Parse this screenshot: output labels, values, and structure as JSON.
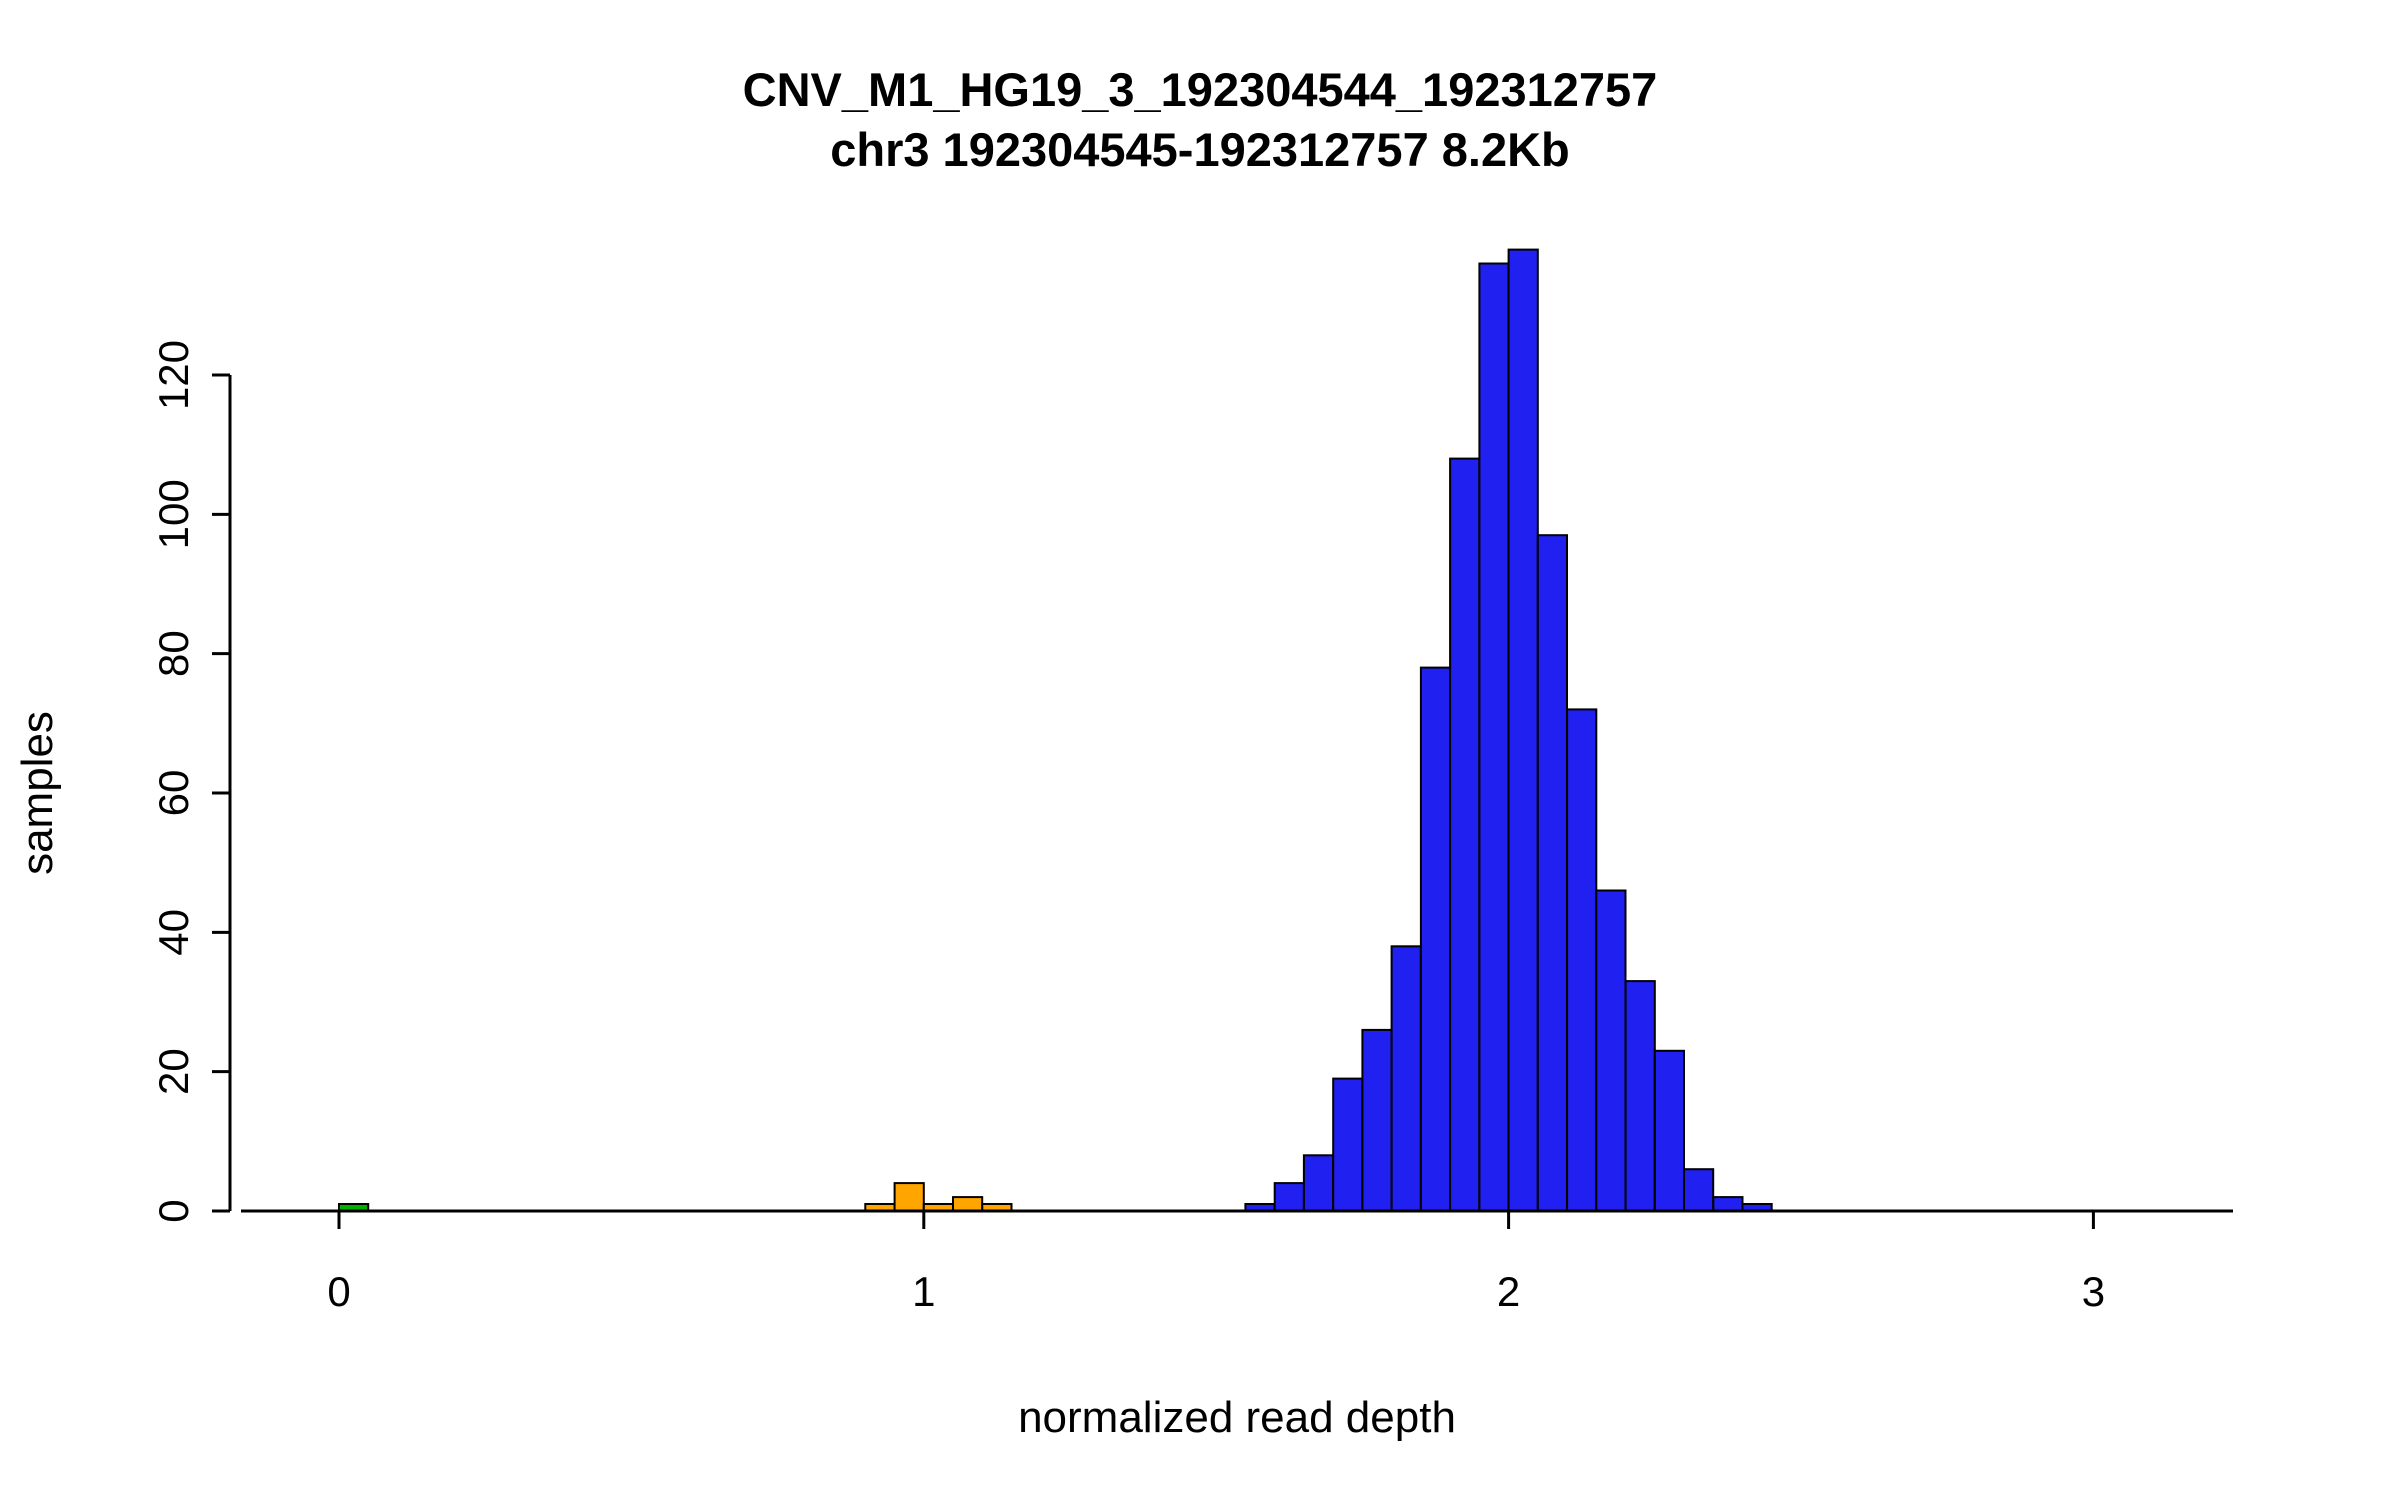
{
  "title": {
    "line1": "CNV_M1_HG19_3_192304544_192312757",
    "line2": "chr3 192304545-192312757 8.2Kb"
  },
  "axes": {
    "xlabel": "normalized read depth",
    "ylabel": "samples",
    "x_ticks": [
      0,
      1,
      2,
      3
    ],
    "y_ticks": [
      0,
      20,
      40,
      60,
      80,
      100,
      120
    ]
  },
  "colors": {
    "green": "#00B000",
    "orange": "#FFA500",
    "blue": "#2020F0",
    "bar_border": "#000000",
    "axis": "#000000"
  },
  "chart_data": {
    "type": "bar",
    "title": "CNV_M1_HG19_3_192304544_192312757",
    "subtitle": "chr3 192304545-192312757 8.2Kb",
    "xlabel": "normalized read depth",
    "ylabel": "samples",
    "xlim": [
      -0.17,
      3.25
    ],
    "ylim": [
      0,
      140
    ],
    "bin_width": 0.05,
    "grid": false,
    "legend": "none",
    "bars": [
      {
        "x": 0.0,
        "count": 1,
        "color": "green"
      },
      {
        "x": 0.9,
        "count": 1,
        "color": "orange"
      },
      {
        "x": 0.95,
        "count": 4,
        "color": "orange"
      },
      {
        "x": 1.0,
        "count": 1,
        "color": "orange"
      },
      {
        "x": 1.05,
        "count": 2,
        "color": "orange"
      },
      {
        "x": 1.1,
        "count": 1,
        "color": "orange"
      },
      {
        "x": 1.55,
        "count": 1,
        "color": "blue"
      },
      {
        "x": 1.6,
        "count": 4,
        "color": "blue"
      },
      {
        "x": 1.65,
        "count": 8,
        "color": "blue"
      },
      {
        "x": 1.7,
        "count": 19,
        "color": "blue"
      },
      {
        "x": 1.75,
        "count": 26,
        "color": "blue"
      },
      {
        "x": 1.8,
        "count": 38,
        "color": "blue"
      },
      {
        "x": 1.85,
        "count": 78,
        "color": "blue"
      },
      {
        "x": 1.9,
        "count": 108,
        "color": "blue"
      },
      {
        "x": 1.95,
        "count": 136,
        "color": "blue"
      },
      {
        "x": 2.0,
        "count": 138,
        "color": "blue"
      },
      {
        "x": 2.05,
        "count": 97,
        "color": "blue"
      },
      {
        "x": 2.1,
        "count": 72,
        "color": "blue"
      },
      {
        "x": 2.15,
        "count": 46,
        "color": "blue"
      },
      {
        "x": 2.2,
        "count": 33,
        "color": "blue"
      },
      {
        "x": 2.25,
        "count": 23,
        "color": "blue"
      },
      {
        "x": 2.3,
        "count": 6,
        "color": "blue"
      },
      {
        "x": 2.35,
        "count": 2,
        "color": "blue"
      },
      {
        "x": 2.4,
        "count": 1,
        "color": "blue"
      }
    ]
  }
}
